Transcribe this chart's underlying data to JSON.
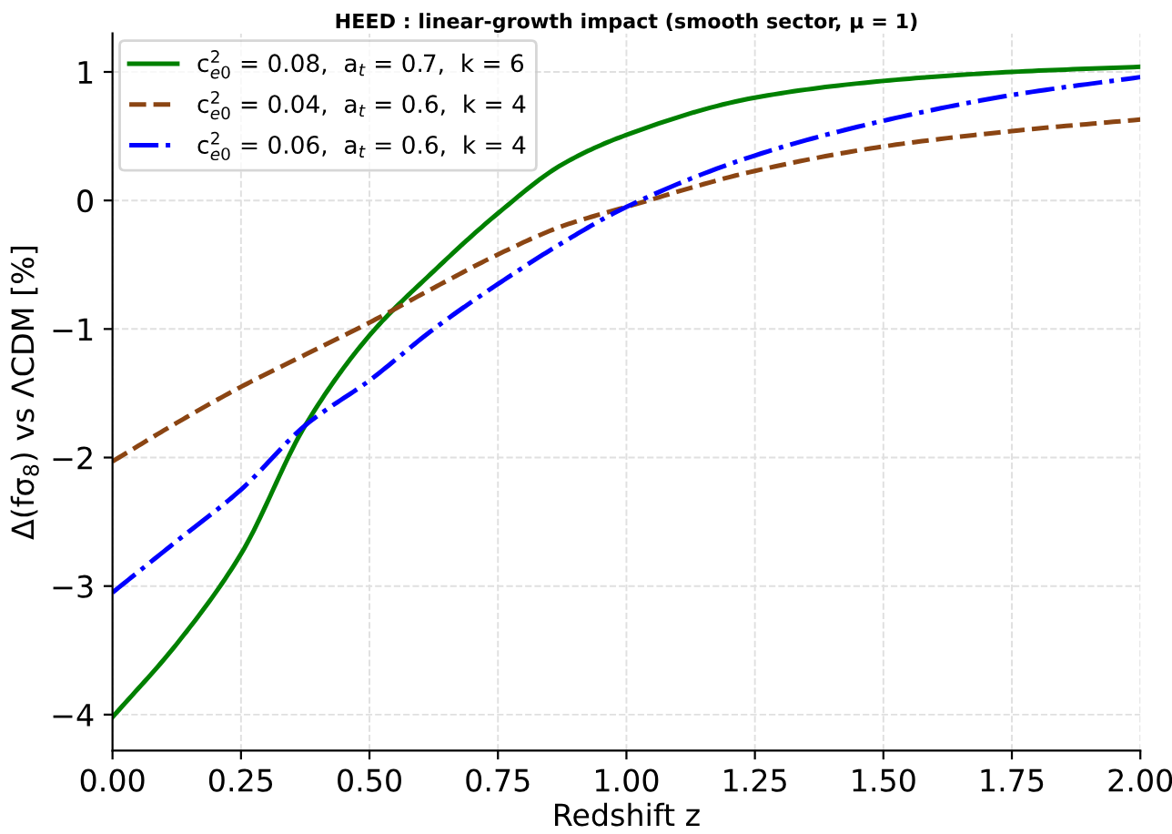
{
  "chart_data": {
    "type": "line",
    "title": "HEED : linear-growth impact (smooth sector, μ = 1)",
    "xlabel": "Redshift z",
    "ylabel": "Δ(fσ$_{8}$) vs ΛCDM [%]",
    "x": [
      0,
      0.125,
      0.25,
      0.375,
      0.5,
      0.625,
      0.75,
      0.875,
      1.0,
      1.25,
      1.5,
      1.75,
      2.0
    ],
    "series": [
      {
        "name": "c$^{2}$$_{e0}$ = 0.08,  a$_{t}$ = 0.7,  k = 6",
        "color": "#008000",
        "line_style": "solid",
        "values": [
          -4.02,
          -3.45,
          -2.75,
          -1.75,
          -1.05,
          -0.55,
          -0.1,
          0.28,
          0.51,
          0.8,
          0.93,
          1.0,
          1.04
        ]
      },
      {
        "name": "c$^{2}$$_{e0}$ = 0.04,  a$_{t}$ = 0.6,  k = 4",
        "color": "#8b4513",
        "line_style": "dashed",
        "values": [
          -2.03,
          -1.73,
          -1.45,
          -1.2,
          -0.95,
          -0.68,
          -0.42,
          -0.2,
          -0.05,
          0.23,
          0.42,
          0.54,
          0.63
        ]
      },
      {
        "name": "c$^{2}$$_{e0}$ = 0.06,  a$_{t}$ = 0.6,  k = 4",
        "color": "#0000ff",
        "line_style": "dashdot",
        "values": [
          -3.05,
          -2.65,
          -2.25,
          -1.75,
          -1.4,
          -1.0,
          -0.65,
          -0.33,
          -0.05,
          0.35,
          0.62,
          0.82,
          0.96
        ]
      }
    ],
    "xlim": [
      0,
      2.0
    ],
    "xticks": [
      {
        "value": 0,
        "label": "0.00"
      },
      {
        "value": 0.25,
        "label": "0.25"
      },
      {
        "value": 0.5,
        "label": "0.50"
      },
      {
        "value": 0.75,
        "label": "0.75"
      },
      {
        "value": 1.0,
        "label": "1.00"
      },
      {
        "value": 1.25,
        "label": "1.25"
      },
      {
        "value": 1.5,
        "label": "1.50"
      },
      {
        "value": 1.75,
        "label": "1.75"
      },
      {
        "value": 2.0,
        "label": "2.00"
      }
    ],
    "ylim": [
      -4.28,
      1.3
    ],
    "yticks": [
      {
        "value": -4,
        "label": "−4"
      },
      {
        "value": -3,
        "label": "−3"
      },
      {
        "value": -2,
        "label": "−2"
      },
      {
        "value": -1,
        "label": "−1"
      },
      0,
      1
    ],
    "grid": true,
    "legend": "top left"
  }
}
